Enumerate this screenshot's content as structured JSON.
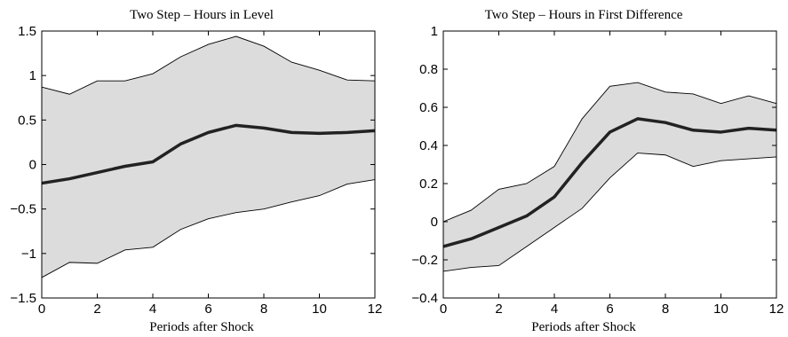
{
  "chart_data": [
    {
      "type": "line",
      "title": "Two Step – Hours in Level",
      "xlabel": "Periods after Shock",
      "ylabel": "",
      "xlim": [
        0,
        12
      ],
      "ylim": [
        -1.5,
        1.5
      ],
      "xticks": [
        0,
        2,
        4,
        6,
        8,
        10,
        12
      ],
      "yticks": [
        -1.5,
        -1,
        -0.5,
        0,
        0.5,
        1,
        1.5
      ],
      "ytick_labels": [
        "−1.5",
        "−1",
        "−0.5",
        "0",
        "0.5",
        "1",
        "1.5"
      ],
      "x": [
        0,
        1,
        2,
        3,
        4,
        5,
        6,
        7,
        8,
        9,
        10,
        11,
        12
      ],
      "series": [
        {
          "role": "estimate",
          "values": [
            -0.21,
            -0.16,
            -0.09,
            -0.02,
            0.03,
            0.23,
            0.36,
            0.44,
            0.41,
            0.36,
            0.35,
            0.36,
            0.38
          ]
        },
        {
          "role": "upper",
          "values": [
            0.87,
            0.79,
            0.94,
            0.94,
            1.02,
            1.21,
            1.35,
            1.44,
            1.33,
            1.15,
            1.06,
            0.95,
            0.94
          ]
        },
        {
          "role": "lower",
          "values": [
            -1.27,
            -1.1,
            -1.11,
            -0.96,
            -0.93,
            -0.73,
            -0.61,
            -0.54,
            -0.5,
            -0.42,
            -0.35,
            -0.22,
            -0.17
          ]
        }
      ],
      "colors": {
        "band": "#dcdcdc",
        "line": "#222222"
      },
      "grid": false
    },
    {
      "type": "line",
      "title": "Two Step – Hours in First Difference",
      "xlabel": "Periods after Shock",
      "ylabel": "",
      "xlim": [
        0,
        12
      ],
      "ylim": [
        -0.4,
        1
      ],
      "xticks": [
        0,
        2,
        4,
        6,
        8,
        10,
        12
      ],
      "yticks": [
        -0.4,
        -0.2,
        0,
        0.2,
        0.4,
        0.6,
        0.8,
        1
      ],
      "ytick_labels": [
        "−0.4",
        "−0.2",
        "0",
        "0.2",
        "0.4",
        "0.6",
        "0.8",
        "1"
      ],
      "x": [
        0,
        1,
        2,
        3,
        4,
        5,
        6,
        7,
        8,
        9,
        10,
        11,
        12
      ],
      "series": [
        {
          "role": "estimate",
          "values": [
            -0.13,
            -0.09,
            -0.03,
            0.03,
            0.13,
            0.31,
            0.47,
            0.54,
            0.52,
            0.48,
            0.47,
            0.49,
            0.48
          ]
        },
        {
          "role": "upper",
          "values": [
            0.0,
            0.06,
            0.17,
            0.2,
            0.29,
            0.54,
            0.71,
            0.73,
            0.68,
            0.67,
            0.62,
            0.66,
            0.62
          ]
        },
        {
          "role": "lower",
          "values": [
            -0.26,
            -0.24,
            -0.23,
            -0.13,
            -0.03,
            0.07,
            0.23,
            0.36,
            0.35,
            0.29,
            0.32,
            0.33,
            0.34
          ]
        }
      ],
      "colors": {
        "band": "#dcdcdc",
        "line": "#222222"
      },
      "grid": false
    }
  ]
}
